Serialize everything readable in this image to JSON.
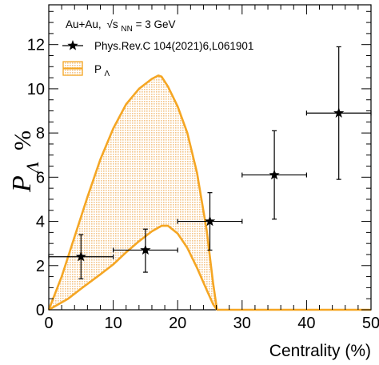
{
  "chart_data": {
    "type": "scatter",
    "xlabel": "Centrality (%)",
    "ylabel": {
      "main": "P",
      "sub": "Λ",
      "unit": "%"
    },
    "xlim": [
      0,
      50
    ],
    "ylim": [
      0,
      13.8
    ],
    "x_ticks": [
      0,
      10,
      20,
      30,
      40,
      50
    ],
    "y_ticks": [
      0,
      2,
      4,
      6,
      8,
      10,
      12
    ],
    "legend": {
      "placement": "top-left",
      "header": {
        "system": "Au+Au,",
        "sqrt": "√s",
        "sub": "NN",
        "energy": "= 3 GeV"
      },
      "entries": [
        "Phys.Rev.C 104(2021)6,L061901",
        "P",
        "Λ"
      ]
    },
    "series": [
      {
        "name": "Phys.Rev.C 104(2021)6,L061901",
        "color": "#000000",
        "marker": "star",
        "points": [
          {
            "x": 5,
            "y": 2.4,
            "xerr": 5,
            "yerr_low": 1.0,
            "yerr_high": 1.0
          },
          {
            "x": 15,
            "y": 2.7,
            "xerr": 5,
            "yerr_low": 1.0,
            "yerr_high": 0.95
          },
          {
            "x": 25,
            "y": 4.0,
            "xerr": 5,
            "yerr_low": 1.3,
            "yerr_high": 1.3
          },
          {
            "x": 35,
            "y": 6.1,
            "xerr": 5,
            "yerr_low": 2.0,
            "yerr_high": 2.0
          },
          {
            "x": 45,
            "y": 8.9,
            "xerr": 5,
            "yerr_low": 3.0,
            "yerr_high": 3.0
          }
        ]
      },
      {
        "name": "P_Λ",
        "type": "band",
        "color": "#f5a623",
        "fill": "#fbe3c4",
        "upper": [
          [
            0,
            0
          ],
          [
            2,
            1.5
          ],
          [
            4,
            3.3
          ],
          [
            6,
            5.1
          ],
          [
            8,
            6.8
          ],
          [
            10,
            8.2
          ],
          [
            12,
            9.3
          ],
          [
            14,
            10.0
          ],
          [
            16,
            10.45
          ],
          [
            17,
            10.6
          ],
          [
            17.5,
            10.55
          ],
          [
            18.5,
            10.1
          ],
          [
            20,
            9.2
          ],
          [
            21.5,
            8.0
          ],
          [
            23,
            6.2
          ],
          [
            24.5,
            3.6
          ],
          [
            25.5,
            1.2
          ],
          [
            26.1,
            0
          ]
        ],
        "lower": [
          [
            0,
            0
          ],
          [
            3,
            0.5
          ],
          [
            5,
            0.95
          ],
          [
            8,
            1.6
          ],
          [
            10,
            2.05
          ],
          [
            12,
            2.6
          ],
          [
            14,
            3.1
          ],
          [
            16,
            3.55
          ],
          [
            17.5,
            3.8
          ],
          [
            18.5,
            3.8
          ],
          [
            20,
            3.45
          ],
          [
            21.5,
            2.8
          ],
          [
            23,
            1.9
          ],
          [
            24.5,
            0.9
          ],
          [
            25.5,
            0.25
          ],
          [
            26.1,
            0
          ]
        ]
      }
    ]
  }
}
